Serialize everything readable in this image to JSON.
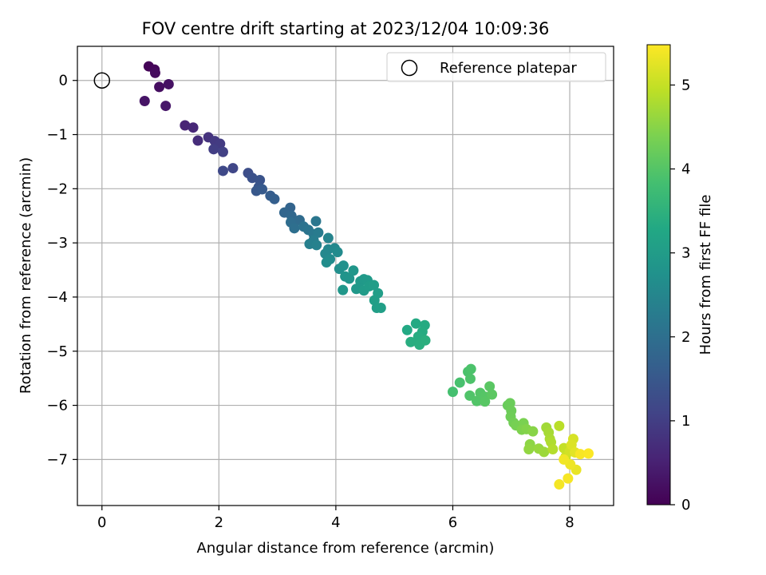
{
  "chart_data": {
    "type": "scatter",
    "title": "FOV centre drift starting at 2023/12/04 10:09:36",
    "xlabel": "Angular distance from reference (arcmin)",
    "ylabel": "Rotation from reference (arcmin)",
    "xlim": [
      -0.42,
      8.75
    ],
    "ylim": [
      -7.85,
      0.63
    ],
    "xticks": [
      0,
      2,
      4,
      6,
      8
    ],
    "yticks": [
      0,
      -1,
      -2,
      -3,
      -4,
      -5,
      -6,
      -7
    ],
    "grid": true,
    "legend": {
      "position": "top-right",
      "entries": [
        "Reference platepar"
      ]
    },
    "reference_point": {
      "x": 0,
      "y": 0
    },
    "colorbar": {
      "label": "Hours from first FF file",
      "range": [
        0,
        5.48
      ],
      "ticks": [
        0,
        1,
        2,
        3,
        4,
        5
      ],
      "colormap": "viridis"
    },
    "series": [
      {
        "points": [
          {
            "x": 0.8,
            "y": 0.26,
            "c": 0.05
          },
          {
            "x": 0.9,
            "y": 0.2,
            "c": 0.1
          },
          {
            "x": 0.91,
            "y": 0.14,
            "c": 0.15
          },
          {
            "x": 0.98,
            "y": -0.12,
            "c": 0.2
          },
          {
            "x": 1.14,
            "y": -0.07,
            "c": 0.25
          },
          {
            "x": 0.73,
            "y": -0.38,
            "c": 0.3
          },
          {
            "x": 1.09,
            "y": -0.47,
            "c": 0.35
          },
          {
            "x": 1.42,
            "y": -0.83,
            "c": 0.55
          },
          {
            "x": 1.56,
            "y": -0.87,
            "c": 0.6
          },
          {
            "x": 1.64,
            "y": -1.11,
            "c": 0.7
          },
          {
            "x": 1.82,
            "y": -1.05,
            "c": 0.8
          },
          {
            "x": 1.93,
            "y": -1.12,
            "c": 0.9
          },
          {
            "x": 2.02,
            "y": -1.17,
            "c": 0.95
          },
          {
            "x": 1.91,
            "y": -1.27,
            "c": 1.0
          },
          {
            "x": 2.07,
            "y": -1.32,
            "c": 1.05
          },
          {
            "x": 2.24,
            "y": -1.62,
            "c": 1.15
          },
          {
            "x": 2.07,
            "y": -1.67,
            "c": 1.2
          },
          {
            "x": 2.5,
            "y": -1.71,
            "c": 1.3
          },
          {
            "x": 2.57,
            "y": -1.8,
            "c": 1.35
          },
          {
            "x": 2.7,
            "y": -1.84,
            "c": 1.4
          },
          {
            "x": 2.68,
            "y": -1.97,
            "c": 1.45
          },
          {
            "x": 2.64,
            "y": -2.04,
            "c": 1.5
          },
          {
            "x": 2.74,
            "y": -2.01,
            "c": 1.55
          },
          {
            "x": 2.88,
            "y": -2.13,
            "c": 1.6
          },
          {
            "x": 2.95,
            "y": -2.19,
            "c": 1.65
          },
          {
            "x": 3.22,
            "y": -2.35,
            "c": 1.75
          },
          {
            "x": 3.12,
            "y": -2.44,
            "c": 1.8
          },
          {
            "x": 3.24,
            "y": -2.5,
            "c": 1.85
          },
          {
            "x": 3.38,
            "y": -2.58,
            "c": 1.9
          },
          {
            "x": 3.23,
            "y": -2.62,
            "c": 1.95
          },
          {
            "x": 3.29,
            "y": -2.73,
            "c": 2.0
          },
          {
            "x": 3.45,
            "y": -2.7,
            "c": 2.05
          },
          {
            "x": 3.53,
            "y": -2.76,
            "c": 2.1
          },
          {
            "x": 3.66,
            "y": -2.6,
            "c": 2.15
          },
          {
            "x": 3.62,
            "y": -2.84,
            "c": 2.2
          },
          {
            "x": 3.7,
            "y": -2.81,
            "c": 2.25
          },
          {
            "x": 3.62,
            "y": -2.95,
            "c": 2.3
          },
          {
            "x": 3.55,
            "y": -3.02,
            "c": 2.35
          },
          {
            "x": 3.67,
            "y": -3.04,
            "c": 2.4
          },
          {
            "x": 3.87,
            "y": -2.91,
            "c": 2.45
          },
          {
            "x": 3.87,
            "y": -3.12,
            "c": 2.5
          },
          {
            "x": 3.82,
            "y": -3.2,
            "c": 2.55
          },
          {
            "x": 3.9,
            "y": -3.3,
            "c": 2.6
          },
          {
            "x": 3.84,
            "y": -3.36,
            "c": 2.65
          },
          {
            "x": 3.98,
            "y": -3.1,
            "c": 2.55
          },
          {
            "x": 4.03,
            "y": -3.17,
            "c": 2.6
          },
          {
            "x": 4.06,
            "y": -3.48,
            "c": 2.7
          },
          {
            "x": 4.13,
            "y": -3.42,
            "c": 2.75
          },
          {
            "x": 4.16,
            "y": -3.62,
            "c": 2.8
          },
          {
            "x": 4.23,
            "y": -3.66,
            "c": 2.82
          },
          {
            "x": 4.3,
            "y": -3.51,
            "c": 2.85
          },
          {
            "x": 4.12,
            "y": -3.87,
            "c": 2.88
          },
          {
            "x": 4.35,
            "y": -3.85,
            "c": 2.9
          },
          {
            "x": 4.42,
            "y": -3.71,
            "c": 2.92
          },
          {
            "x": 4.48,
            "y": -3.67,
            "c": 2.94
          },
          {
            "x": 4.54,
            "y": -3.69,
            "c": 2.96
          },
          {
            "x": 4.48,
            "y": -3.88,
            "c": 2.98
          },
          {
            "x": 4.57,
            "y": -3.8,
            "c": 3.0
          },
          {
            "x": 4.65,
            "y": -3.78,
            "c": 3.02
          },
          {
            "x": 4.72,
            "y": -3.93,
            "c": 3.04
          },
          {
            "x": 4.66,
            "y": -4.06,
            "c": 3.05
          },
          {
            "x": 4.7,
            "y": -4.2,
            "c": 3.06
          },
          {
            "x": 4.77,
            "y": -4.2,
            "c": 3.07
          },
          {
            "x": 5.22,
            "y": -4.61,
            "c": 3.3
          },
          {
            "x": 5.37,
            "y": -4.49,
            "c": 3.32
          },
          {
            "x": 5.52,
            "y": -4.52,
            "c": 3.34
          },
          {
            "x": 5.48,
            "y": -4.64,
            "c": 3.36
          },
          {
            "x": 5.41,
            "y": -4.73,
            "c": 3.38
          },
          {
            "x": 5.28,
            "y": -4.83,
            "c": 3.4
          },
          {
            "x": 5.43,
            "y": -4.88,
            "c": 3.42
          },
          {
            "x": 5.53,
            "y": -4.8,
            "c": 3.44
          },
          {
            "x": 6.0,
            "y": -5.75,
            "c": 3.85
          },
          {
            "x": 6.12,
            "y": -5.58,
            "c": 3.88
          },
          {
            "x": 6.26,
            "y": -5.38,
            "c": 3.9
          },
          {
            "x": 6.31,
            "y": -5.33,
            "c": 3.92
          },
          {
            "x": 6.3,
            "y": -5.51,
            "c": 3.94
          },
          {
            "x": 6.29,
            "y": -5.82,
            "c": 3.96
          },
          {
            "x": 6.41,
            "y": -5.92,
            "c": 3.98
          },
          {
            "x": 6.47,
            "y": -5.77,
            "c": 4.0
          },
          {
            "x": 6.55,
            "y": -5.84,
            "c": 4.02
          },
          {
            "x": 6.55,
            "y": -5.93,
            "c": 4.04
          },
          {
            "x": 6.63,
            "y": -5.65,
            "c": 4.06
          },
          {
            "x": 6.67,
            "y": -5.8,
            "c": 4.08
          },
          {
            "x": 6.94,
            "y": -6.0,
            "c": 4.2
          },
          {
            "x": 6.98,
            "y": -5.96,
            "c": 4.22
          },
          {
            "x": 7.0,
            "y": -6.1,
            "c": 4.24
          },
          {
            "x": 6.99,
            "y": -6.21,
            "c": 4.26
          },
          {
            "x": 7.04,
            "y": -6.32,
            "c": 4.3
          },
          {
            "x": 7.08,
            "y": -6.37,
            "c": 4.34
          },
          {
            "x": 7.21,
            "y": -6.33,
            "c": 4.38
          },
          {
            "x": 7.18,
            "y": -6.45,
            "c": 4.42
          },
          {
            "x": 7.26,
            "y": -6.44,
            "c": 4.46
          },
          {
            "x": 7.37,
            "y": -6.48,
            "c": 4.5
          },
          {
            "x": 7.32,
            "y": -6.72,
            "c": 4.54
          },
          {
            "x": 7.3,
            "y": -6.81,
            "c": 4.58
          },
          {
            "x": 7.47,
            "y": -6.8,
            "c": 4.62
          },
          {
            "x": 7.56,
            "y": -6.86,
            "c": 4.66
          },
          {
            "x": 7.6,
            "y": -6.41,
            "c": 4.7
          },
          {
            "x": 7.64,
            "y": -6.5,
            "c": 4.74
          },
          {
            "x": 7.66,
            "y": -6.62,
            "c": 4.78
          },
          {
            "x": 7.68,
            "y": -6.68,
            "c": 4.82
          },
          {
            "x": 7.71,
            "y": -6.81,
            "c": 4.86
          },
          {
            "x": 7.82,
            "y": -6.38,
            "c": 4.9
          },
          {
            "x": 7.9,
            "y": -6.79,
            "c": 5.0
          },
          {
            "x": 7.93,
            "y": -6.95,
            "c": 5.05
          },
          {
            "x": 8.0,
            "y": -6.85,
            "c": 5.1
          },
          {
            "x": 8.06,
            "y": -6.62,
            "c": 5.15
          },
          {
            "x": 8.03,
            "y": -6.73,
            "c": 5.2
          },
          {
            "x": 8.09,
            "y": -6.87,
            "c": 5.25
          },
          {
            "x": 8.11,
            "y": -7.19,
            "c": 5.3
          },
          {
            "x": 8.01,
            "y": -7.09,
            "c": 5.35
          },
          {
            "x": 7.9,
            "y": -7.0,
            "c": 5.38
          },
          {
            "x": 7.82,
            "y": -7.46,
            "c": 5.4
          },
          {
            "x": 7.97,
            "y": -7.35,
            "c": 5.42
          },
          {
            "x": 8.18,
            "y": -6.9,
            "c": 5.44
          },
          {
            "x": 8.32,
            "y": -6.89,
            "c": 5.46
          }
        ]
      }
    ]
  }
}
